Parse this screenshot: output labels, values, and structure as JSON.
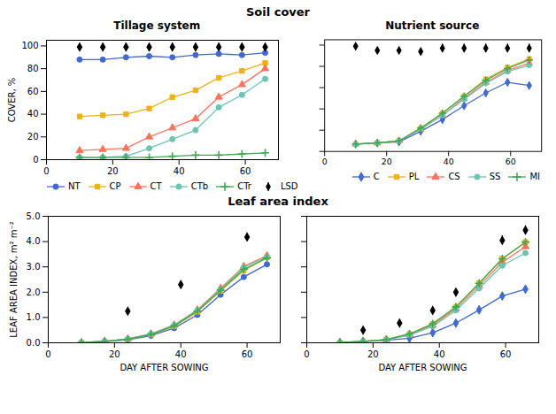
{
  "chart_data": [
    {
      "type": "line",
      "suptitle": "Soil cover",
      "title": "Tillage system",
      "x": [
        10,
        17,
        24,
        31,
        38,
        45,
        52,
        59,
        66
      ],
      "series": [
        {
          "name": "NT",
          "marker": "circle",
          "values": [
            88,
            88,
            90,
            91,
            90,
            92,
            93,
            92,
            94
          ]
        },
        {
          "name": "CP",
          "marker": "square",
          "values": [
            38,
            39,
            40,
            45,
            55,
            61,
            72,
            78,
            85
          ]
        },
        {
          "name": "CT",
          "marker": "triangle",
          "values": [
            8,
            9,
            10,
            20,
            28,
            36,
            55,
            66,
            80
          ]
        },
        {
          "name": "CTb",
          "marker": "circle",
          "values": [
            2,
            2,
            3,
            10,
            18,
            26,
            46,
            57,
            71
          ]
        },
        {
          "name": "CTr",
          "marker": "plus",
          "values": [
            2,
            2,
            2,
            2,
            3,
            4,
            4,
            5,
            6
          ]
        },
        {
          "name": "LSD",
          "type": "errorbar",
          "marker": "diamond",
          "color": "black",
          "values": [
            99,
            99,
            99,
            99,
            99,
            99,
            99,
            99,
            99
          ],
          "error": [
            3,
            3,
            3,
            3,
            3,
            3,
            3,
            3,
            3
          ]
        }
      ],
      "xlim": [
        0,
        70
      ],
      "xticks": [
        0,
        20,
        40,
        60
      ],
      "ylim": [
        0,
        105
      ],
      "yticks": [
        0,
        20,
        40,
        60,
        80,
        100
      ],
      "ylabel": "COVER, %",
      "legend": "lower right",
      "grid": false
    },
    {
      "type": "line",
      "title": "Nutrient source",
      "x": [
        10,
        17,
        24,
        31,
        38,
        45,
        52,
        59,
        66
      ],
      "series": [
        {
          "name": "C",
          "marker": "diamond",
          "values": [
            7,
            8,
            9,
            19,
            30,
            43,
            55,
            65,
            62
          ]
        },
        {
          "name": "PL",
          "marker": "square",
          "values": [
            7,
            8,
            10,
            22,
            36,
            52,
            68,
            79,
            87
          ]
        },
        {
          "name": "CS",
          "marker": "triangle",
          "values": [
            7,
            8,
            10,
            21,
            34,
            50,
            65,
            76,
            83
          ]
        },
        {
          "name": "SS",
          "marker": "circle",
          "values": [
            7,
            8,
            10,
            21,
            34,
            49,
            64,
            75,
            81
          ]
        },
        {
          "name": "MI",
          "marker": "plus",
          "values": [
            7,
            8,
            10,
            22,
            36,
            52,
            67,
            78,
            86
          ]
        },
        {
          "type": "errorbar",
          "marker": "diamond",
          "color": "black",
          "values": [
            99,
            95,
            95,
            94,
            97,
            97,
            97,
            97,
            97
          ],
          "error": [
            0.5,
            0.5,
            0.5,
            0.5,
            4,
            4,
            4,
            4,
            4
          ]
        }
      ],
      "xlim": [
        0,
        70
      ],
      "xticks": [
        0,
        20,
        40,
        60
      ],
      "ylim": [
        0,
        105
      ],
      "yticks": [
        0,
        20,
        40,
        60,
        80,
        100
      ],
      "tick_labels": "x",
      "legend": "lower right",
      "grid": false
    },
    {
      "type": "line",
      "suptitle": "Leaf area index",
      "x": [
        10,
        17,
        24,
        31,
        38,
        45,
        52,
        59,
        66
      ],
      "series": [
        {
          "marker": "circle",
          "values": [
            0.01,
            0.05,
            0.12,
            0.28,
            0.58,
            1.1,
            1.9,
            2.6,
            3.1
          ]
        },
        {
          "marker": "square",
          "values": [
            0.01,
            0.06,
            0.14,
            0.32,
            0.65,
            1.22,
            2.05,
            2.85,
            3.38
          ]
        },
        {
          "marker": "triangle",
          "values": [
            0.01,
            0.06,
            0.15,
            0.35,
            0.7,
            1.3,
            2.15,
            3.02,
            3.44
          ]
        },
        {
          "marker": "circle",
          "values": [
            0.01,
            0.06,
            0.15,
            0.35,
            0.7,
            1.28,
            2.12,
            2.98,
            3.4
          ]
        },
        {
          "marker": "plus",
          "values": [
            0.01,
            0.06,
            0.14,
            0.33,
            0.67,
            1.25,
            2.08,
            2.9,
            3.35
          ]
        },
        {
          "type": "errorbar",
          "marker": "diamond",
          "color": "black",
          "x": [
            24,
            40,
            60
          ],
          "values": [
            1.25,
            2.3,
            4.18
          ],
          "error": [
            0.08,
            0.08,
            0.14
          ]
        }
      ],
      "xlim": [
        0,
        70
      ],
      "xticks": [
        0,
        20,
        40,
        60
      ],
      "ylim": [
        0,
        5
      ],
      "yticks": [
        0,
        1,
        2,
        3,
        4,
        5
      ],
      "xlabel": "DAY AFTER SOWING",
      "ylabel": "LEAF AREA INDEX, m² m⁻²",
      "grid": false
    },
    {
      "type": "line",
      "x": [
        10,
        17,
        24,
        31,
        38,
        45,
        52,
        59,
        66
      ],
      "series": [
        {
          "marker": "diamond",
          "values": [
            0.01,
            0.05,
            0.1,
            0.18,
            0.4,
            0.78,
            1.3,
            1.85,
            2.12
          ]
        },
        {
          "marker": "square",
          "values": [
            0.01,
            0.06,
            0.13,
            0.35,
            0.75,
            1.42,
            2.35,
            3.32,
            3.98
          ]
        },
        {
          "marker": "triangle",
          "values": [
            0.01,
            0.06,
            0.12,
            0.32,
            0.7,
            1.35,
            2.25,
            3.18,
            3.8
          ]
        },
        {
          "marker": "circle",
          "values": [
            0.01,
            0.06,
            0.12,
            0.3,
            0.65,
            1.28,
            2.15,
            3.05,
            3.55
          ]
        },
        {
          "marker": "plus",
          "values": [
            0.01,
            0.06,
            0.13,
            0.35,
            0.75,
            1.42,
            2.35,
            3.32,
            3.98
          ]
        },
        {
          "type": "errorbar",
          "marker": "diamond",
          "color": "black",
          "x": [
            17,
            28,
            38,
            45,
            59,
            66
          ],
          "values": [
            0.5,
            0.78,
            1.28,
            2.0,
            4.05,
            4.45
          ],
          "error": [
            0.06,
            0.07,
            0.1,
            0.12,
            0.18,
            0.18
          ]
        }
      ],
      "xlim": [
        0,
        70
      ],
      "xticks": [
        0,
        20,
        40,
        60
      ],
      "ylim": [
        0,
        5
      ],
      "yticks": [
        0,
        1,
        2,
        3,
        4,
        5
      ],
      "xlabel": "DAY AFTER SOWING",
      "tick_labels": "x",
      "grid": false
    }
  ]
}
